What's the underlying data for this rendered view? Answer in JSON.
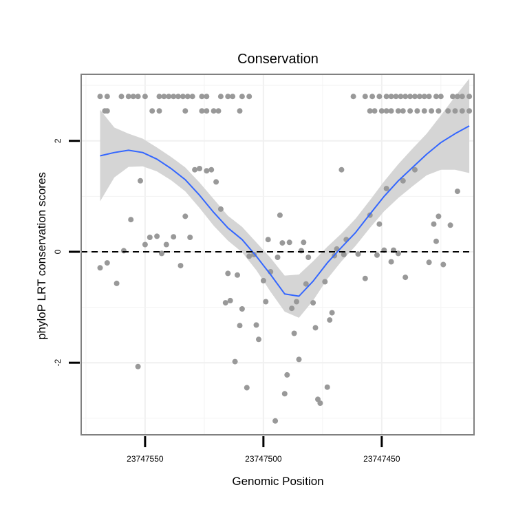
{
  "chart_data": {
    "type": "scatter",
    "title": "Conservation",
    "xlabel": "Genomic Position",
    "ylabel": "phyloP LRT conservation scores",
    "xlim": [
      23747577,
      23747411
    ],
    "ylim": [
      -3.3,
      3.2
    ],
    "x_reversed": true,
    "xticks": [
      23747550,
      23747500,
      23747450
    ],
    "xtick_labels": [
      "23747550",
      "23747500",
      "23747450"
    ],
    "yticks": [
      2,
      0,
      -2
    ],
    "ytick_labels": [
      "2",
      "0",
      "-2"
    ],
    "reference_line": {
      "y": 0,
      "style": "dashed"
    },
    "grid": true,
    "series": [
      {
        "name": "scores",
        "color": "#999999",
        "points": [
          {
            "x": 23747569,
            "y": 2.8
          },
          {
            "x": 23747566,
            "y": 2.8
          },
          {
            "x": 23747560,
            "y": 2.8
          },
          {
            "x": 23747557,
            "y": 2.8
          },
          {
            "x": 23747555,
            "y": 2.8
          },
          {
            "x": 23747553,
            "y": 2.8
          },
          {
            "x": 23747550,
            "y": 2.8
          },
          {
            "x": 23747544,
            "y": 2.8
          },
          {
            "x": 23747542,
            "y": 2.8
          },
          {
            "x": 23747540,
            "y": 2.8
          },
          {
            "x": 23747538,
            "y": 2.8
          },
          {
            "x": 23747536,
            "y": 2.8
          },
          {
            "x": 23747534,
            "y": 2.8
          },
          {
            "x": 23747532,
            "y": 2.8
          },
          {
            "x": 23747530,
            "y": 2.8
          },
          {
            "x": 23747526,
            "y": 2.8
          },
          {
            "x": 23747524,
            "y": 2.8
          },
          {
            "x": 23747518,
            "y": 2.8
          },
          {
            "x": 23747515,
            "y": 2.8
          },
          {
            "x": 23747513,
            "y": 2.8
          },
          {
            "x": 23747509,
            "y": 2.8
          },
          {
            "x": 23747506,
            "y": 2.8
          },
          {
            "x": 23747567,
            "y": 2.54
          },
          {
            "x": 23747566,
            "y": 2.54
          },
          {
            "x": 23747547,
            "y": 2.54
          },
          {
            "x": 23747544,
            "y": 2.54
          },
          {
            "x": 23747533,
            "y": 2.54
          },
          {
            "x": 23747526,
            "y": 2.54
          },
          {
            "x": 23747524,
            "y": 2.54
          },
          {
            "x": 23747521,
            "y": 2.54
          },
          {
            "x": 23747519,
            "y": 2.54
          },
          {
            "x": 23747510,
            "y": 2.54
          },
          {
            "x": 23747462,
            "y": 2.8
          },
          {
            "x": 23747457,
            "y": 2.8
          },
          {
            "x": 23747454,
            "y": 2.8
          },
          {
            "x": 23747451,
            "y": 2.8
          },
          {
            "x": 23747448,
            "y": 2.8
          },
          {
            "x": 23747446,
            "y": 2.8
          },
          {
            "x": 23747444,
            "y": 2.8
          },
          {
            "x": 23747442,
            "y": 2.8
          },
          {
            "x": 23747440,
            "y": 2.8
          },
          {
            "x": 23747438,
            "y": 2.8
          },
          {
            "x": 23747436,
            "y": 2.8
          },
          {
            "x": 23747434,
            "y": 2.8
          },
          {
            "x": 23747432,
            "y": 2.8
          },
          {
            "x": 23747430,
            "y": 2.8
          },
          {
            "x": 23747427,
            "y": 2.8
          },
          {
            "x": 23747425,
            "y": 2.8
          },
          {
            "x": 23747420,
            "y": 2.8
          },
          {
            "x": 23747418,
            "y": 2.8
          },
          {
            "x": 23747416,
            "y": 2.8
          },
          {
            "x": 23747413,
            "y": 2.8
          },
          {
            "x": 23747455,
            "y": 2.54
          },
          {
            "x": 23747453,
            "y": 2.54
          },
          {
            "x": 23747450,
            "y": 2.54
          },
          {
            "x": 23747448,
            "y": 2.54
          },
          {
            "x": 23747446,
            "y": 2.54
          },
          {
            "x": 23747443,
            "y": 2.54
          },
          {
            "x": 23747441,
            "y": 2.54
          },
          {
            "x": 23747438,
            "y": 2.54
          },
          {
            "x": 23747435,
            "y": 2.54
          },
          {
            "x": 23747432,
            "y": 2.54
          },
          {
            "x": 23747429,
            "y": 2.54
          },
          {
            "x": 23747426,
            "y": 2.54
          },
          {
            "x": 23747422,
            "y": 2.54
          },
          {
            "x": 23747419,
            "y": 2.54
          },
          {
            "x": 23747416,
            "y": 2.54
          },
          {
            "x": 23747413,
            "y": 2.54
          },
          {
            "x": 23747569,
            "y": -0.29
          },
          {
            "x": 23747566,
            "y": -0.2
          },
          {
            "x": 23747562,
            "y": -0.57
          },
          {
            "x": 23747559,
            "y": 0.02
          },
          {
            "x": 23747556,
            "y": 0.58
          },
          {
            "x": 23747553,
            "y": -2.07
          },
          {
            "x": 23747552,
            "y": 1.28
          },
          {
            "x": 23747550,
            "y": 0.13
          },
          {
            "x": 23747548,
            "y": 0.26
          },
          {
            "x": 23747545,
            "y": 0.28
          },
          {
            "x": 23747543,
            "y": -0.03
          },
          {
            "x": 23747541,
            "y": 0.13
          },
          {
            "x": 23747538,
            "y": 0.27
          },
          {
            "x": 23747535,
            "y": -0.25
          },
          {
            "x": 23747533,
            "y": 0.64
          },
          {
            "x": 23747531,
            "y": 0.26
          },
          {
            "x": 23747529,
            "y": 1.48
          },
          {
            "x": 23747527,
            "y": 1.5
          },
          {
            "x": 23747524,
            "y": 1.46
          },
          {
            "x": 23747522,
            "y": 1.48
          },
          {
            "x": 23747520,
            "y": 1.26
          },
          {
            "x": 23747518,
            "y": 0.77
          },
          {
            "x": 23747516,
            "y": -0.92
          },
          {
            "x": 23747515,
            "y": -0.39
          },
          {
            "x": 23747514,
            "y": -0.88
          },
          {
            "x": 23747512,
            "y": -1.98
          },
          {
            "x": 23747511,
            "y": -0.42
          },
          {
            "x": 23747510,
            "y": -1.33
          },
          {
            "x": 23747509,
            "y": -1.03
          },
          {
            "x": 23747507,
            "y": -2.45
          },
          {
            "x": 23747506,
            "y": -0.08
          },
          {
            "x": 23747504,
            "y": -0.05
          },
          {
            "x": 23747503,
            "y": -1.32
          },
          {
            "x": 23747502,
            "y": -1.58
          },
          {
            "x": 23747500,
            "y": -0.52
          },
          {
            "x": 23747499,
            "y": -0.9
          },
          {
            "x": 23747498,
            "y": 0.22
          },
          {
            "x": 23747497,
            "y": -0.36
          },
          {
            "x": 23747495,
            "y": -3.05
          },
          {
            "x": 23747494,
            "y": -0.1
          },
          {
            "x": 23747493,
            "y": 0.66
          },
          {
            "x": 23747492,
            "y": 0.16
          },
          {
            "x": 23747491,
            "y": -2.56
          },
          {
            "x": 23747490,
            "y": -2.22
          },
          {
            "x": 23747489,
            "y": 0.17
          },
          {
            "x": 23747488,
            "y": -1.02
          },
          {
            "x": 23747487,
            "y": -1.47
          },
          {
            "x": 23747486,
            "y": -0.9
          },
          {
            "x": 23747485,
            "y": -1.94
          },
          {
            "x": 23747484,
            "y": 0.02
          },
          {
            "x": 23747483,
            "y": 0.17
          },
          {
            "x": 23747482,
            "y": -0.58
          },
          {
            "x": 23747481,
            "y": -0.1
          },
          {
            "x": 23747479,
            "y": -0.92
          },
          {
            "x": 23747478,
            "y": -1.37
          },
          {
            "x": 23747477,
            "y": -2.66
          },
          {
            "x": 23747476,
            "y": -2.73
          },
          {
            "x": 23747474,
            "y": -0.54
          },
          {
            "x": 23747473,
            "y": -2.44
          },
          {
            "x": 23747472,
            "y": -1.23
          },
          {
            "x": 23747471,
            "y": -1.1
          },
          {
            "x": 23747470,
            "y": -0.07
          },
          {
            "x": 23747469,
            "y": 0.05
          },
          {
            "x": 23747467,
            "y": 1.48
          },
          {
            "x": 23747466,
            "y": -0.05
          },
          {
            "x": 23747465,
            "y": 0.22
          },
          {
            "x": 23747460,
            "y": -0.04
          },
          {
            "x": 23747457,
            "y": -0.48
          },
          {
            "x": 23747455,
            "y": 0.66
          },
          {
            "x": 23747452,
            "y": -0.06
          },
          {
            "x": 23747451,
            "y": 0.5
          },
          {
            "x": 23747449,
            "y": 0.03
          },
          {
            "x": 23747448,
            "y": 1.14
          },
          {
            "x": 23747446,
            "y": -0.18
          },
          {
            "x": 23747445,
            "y": 0.03
          },
          {
            "x": 23747443,
            "y": -0.03
          },
          {
            "x": 23747441,
            "y": 1.28
          },
          {
            "x": 23747440,
            "y": -0.46
          },
          {
            "x": 23747436,
            "y": 1.48
          },
          {
            "x": 23747430,
            "y": -0.19
          },
          {
            "x": 23747428,
            "y": 0.5
          },
          {
            "x": 23747427,
            "y": 0.19
          },
          {
            "x": 23747426,
            "y": 0.64
          },
          {
            "x": 23747424,
            "y": -0.23
          },
          {
            "x": 23747421,
            "y": 0.48
          },
          {
            "x": 23747418,
            "y": 1.09
          }
        ]
      }
    ],
    "smooth": {
      "color": "#3366FF",
      "band_color": "#d3d3d3",
      "x": [
        23747569,
        23747563,
        23747557,
        23747551,
        23747545,
        23747539,
        23747533,
        23747527,
        23747521,
        23747515,
        23747509,
        23747503,
        23747497,
        23747491,
        23747485,
        23747479,
        23747473,
        23747467,
        23747461,
        23747455,
        23747449,
        23747443,
        23747437,
        23747431,
        23747425,
        23747419,
        23747413
      ],
      "y": [
        1.73,
        1.79,
        1.83,
        1.79,
        1.67,
        1.5,
        1.3,
        1.02,
        0.71,
        0.43,
        0.22,
        -0.08,
        -0.41,
        -0.76,
        -0.8,
        -0.53,
        -0.2,
        0.08,
        0.35,
        0.68,
        1.0,
        1.28,
        1.52,
        1.76,
        1.97,
        2.13,
        2.27
      ],
      "lower": [
        0.91,
        1.34,
        1.53,
        1.54,
        1.45,
        1.29,
        1.09,
        0.79,
        0.47,
        0.2,
        -0.01,
        -0.33,
        -0.72,
        -1.08,
        -1.19,
        -0.88,
        -0.49,
        -0.17,
        0.11,
        0.43,
        0.73,
        0.97,
        1.18,
        1.38,
        1.48,
        1.48,
        1.42
      ],
      "upper": [
        2.56,
        2.24,
        2.13,
        2.04,
        1.88,
        1.71,
        1.52,
        1.25,
        0.95,
        0.65,
        0.45,
        0.17,
        -0.11,
        -0.43,
        -0.41,
        -0.17,
        0.09,
        0.33,
        0.6,
        0.93,
        1.27,
        1.58,
        1.86,
        2.13,
        2.46,
        2.8,
        3.12
      ]
    }
  }
}
